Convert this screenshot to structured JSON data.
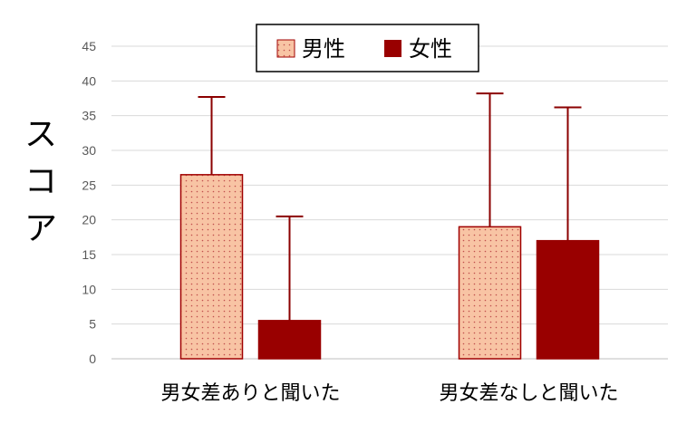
{
  "chart_data": {
    "type": "bar",
    "ylabel": "スコア",
    "categories": [
      "男女差ありと聞いた",
      "男女差なしと聞いた"
    ],
    "ylim": [
      0,
      45
    ],
    "yticks": [
      0,
      5,
      10,
      15,
      20,
      25,
      30,
      35,
      40,
      45
    ],
    "grid": true,
    "legend_position": "top-center",
    "series": [
      {
        "name": "男性",
        "values": [
          26.5,
          19.0
        ],
        "error_upper": [
          37.7,
          38.2
        ],
        "fill": "#f8c4a4",
        "stroke": "#a00000",
        "pattern": "dotted"
      },
      {
        "name": "女性",
        "values": [
          5.5,
          17.0
        ],
        "error_upper": [
          20.5,
          36.2
        ],
        "fill": "#990000",
        "stroke": "#990000",
        "pattern": "solid"
      }
    ],
    "error_color": "#8b0000"
  }
}
